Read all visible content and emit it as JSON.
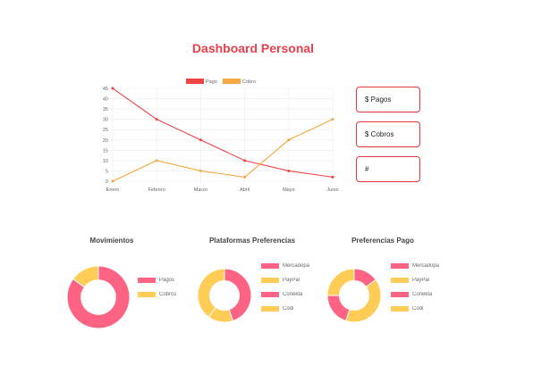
{
  "page": {
    "title": "Dashboard Personal"
  },
  "cards": [
    {
      "label": "$ Pagos"
    },
    {
      "label": "$ Cobros"
    },
    {
      "label": "#"
    }
  ],
  "colors": {
    "pagos_line": "#ee4444",
    "cobros_line": "#f5a742",
    "pink": "#ff6384",
    "yellow": "#ffcd56"
  },
  "chart_data": [
    {
      "type": "line",
      "categories": [
        "Enero",
        "Febrero",
        "Marzo",
        "Abril",
        "Mayo",
        "Junio"
      ],
      "series": [
        {
          "name": "Pago",
          "values": [
            45,
            30,
            20,
            10,
            5,
            2
          ],
          "color": "#ee4444"
        },
        {
          "name": "Cobro",
          "values": [
            0,
            10,
            5,
            2,
            20,
            30
          ],
          "color": "#f5a742"
        }
      ],
      "yticks": [
        0,
        5,
        10,
        15,
        20,
        25,
        30,
        35,
        40,
        45
      ],
      "ylim": [
        0,
        45
      ],
      "legend": "top",
      "grid": true
    },
    {
      "type": "pie",
      "title": "Movimientos",
      "labels": [
        "Pagos",
        "Cobros"
      ],
      "values": [
        85,
        15
      ],
      "colors": [
        "#ff6384",
        "#ffcd56"
      ]
    },
    {
      "type": "pie",
      "title": "Plataformas Preferencias",
      "labels": [
        "Mercadopa",
        "PayPal",
        "Conekta",
        "Codi"
      ],
      "values": [
        45,
        15,
        0,
        40
      ],
      "colors": [
        "#ff6384",
        "#ffcd56",
        "#ff6384",
        "#ffcd56"
      ]
    },
    {
      "type": "pie",
      "title": "Preferencias Pago",
      "labels": [
        "Mercadopa",
        "PayPal",
        "Conekta",
        "Codi"
      ],
      "values": [
        15,
        40,
        20,
        25
      ],
      "colors": [
        "#ff6384",
        "#ffcd56",
        "#ff6384",
        "#ffcd56"
      ]
    }
  ]
}
